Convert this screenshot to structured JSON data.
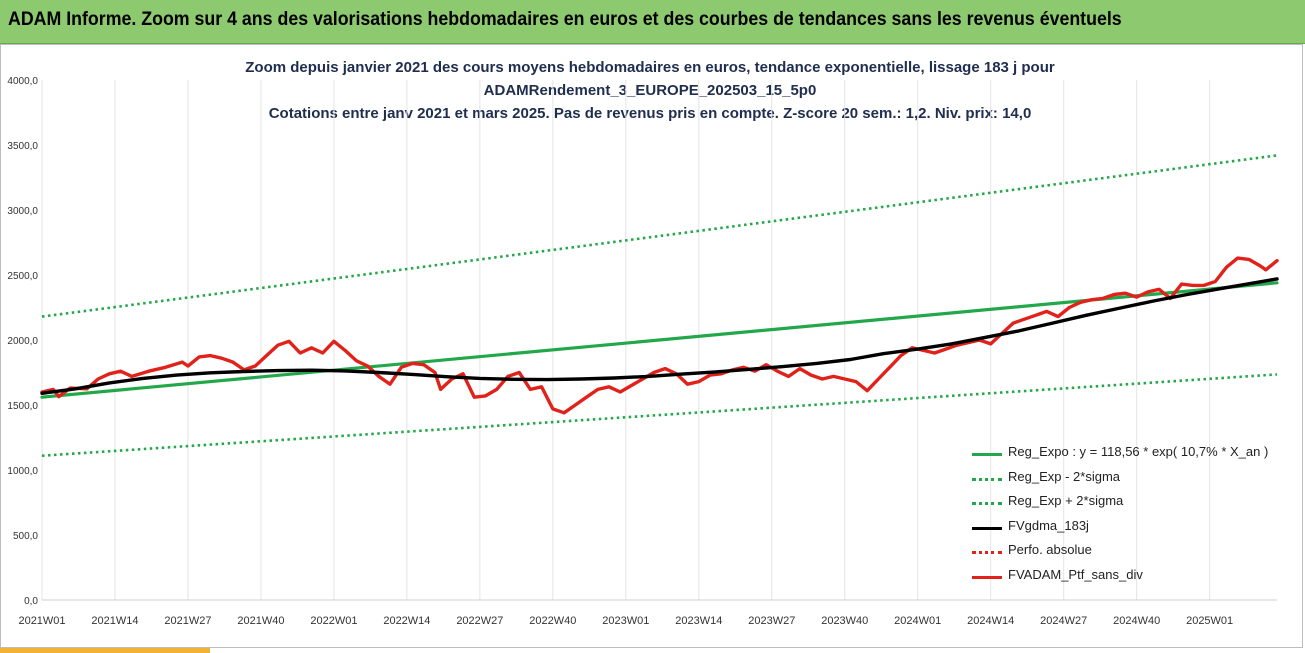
{
  "banner": {
    "title": "ADAM Informe. Zoom sur 4 ans des valorisations hebdomadaires en euros et des courbes de tendances sans les revenus éventuels"
  },
  "colors": {
    "banner_bg": "#8dc96e",
    "reg_expo": "#22a84a",
    "reg_band": "#22a84a",
    "fvgdma": "#000000",
    "perfo": "#e0221b",
    "fvadam": "#e0221b",
    "accent": "#f2b233"
  },
  "chart_data": {
    "type": "line",
    "title_lines": [
      "Zoom depuis janvier 2021 des cours moyens hebdomadaires  en euros, tendance exponentielle, lissage 183 j pour",
      "ADAMRendement_3_EUROPE_202503_15_5p0",
      "Cotations  entre janv 2021 et mars 2025. Pas de revenus pris en compte. Z-score 20 sem.: 1,2. Niv. prix: 14,0"
    ],
    "ylim": [
      0,
      4000
    ],
    "yticks": [
      "0,0",
      "500,0",
      "1000,0",
      "1500,0",
      "2000,0",
      "2500,0",
      "3000,0",
      "3500,0",
      "4000,0"
    ],
    "xticks": [
      {
        "label": "2021W01",
        "week": 0
      },
      {
        "label": "2021W14",
        "week": 13
      },
      {
        "label": "2021W27",
        "week": 26
      },
      {
        "label": "2021W40",
        "week": 39
      },
      {
        "label": "2022W01",
        "week": 52
      },
      {
        "label": "2022W14",
        "week": 65
      },
      {
        "label": "2022W27",
        "week": 78
      },
      {
        "label": "2022W40",
        "week": 91
      },
      {
        "label": "2023W01",
        "week": 104
      },
      {
        "label": "2023W14",
        "week": 117
      },
      {
        "label": "2023W27",
        "week": 130
      },
      {
        "label": "2023W40",
        "week": 143
      },
      {
        "label": "2024W01",
        "week": 156
      },
      {
        "label": "2024W14",
        "week": 169
      },
      {
        "label": "2024W27",
        "week": 182
      },
      {
        "label": "2024W40",
        "week": 195
      },
      {
        "label": "2025W01",
        "week": 208
      }
    ],
    "x_max_week": 220,
    "series": [
      {
        "name": "Reg_Expo : y = 118,56 * exp( 10,7% *  X_an )",
        "style": "solid-green",
        "points": [
          [
            0,
            1560
          ],
          [
            220,
            2440
          ]
        ]
      },
      {
        "name": "Reg_Exp - 2*sigma",
        "style": "dotted-green",
        "points": [
          [
            0,
            1110
          ],
          [
            220,
            1735
          ]
        ]
      },
      {
        "name": "Reg_Exp + 2*sigma",
        "style": "dotted-green",
        "points": [
          [
            0,
            2180
          ],
          [
            220,
            3420
          ]
        ]
      },
      {
        "name": "FVgdma_183j",
        "style": "solid-black",
        "points": [
          [
            0,
            1590
          ],
          [
            6,
            1625
          ],
          [
            12,
            1670
          ],
          [
            18,
            1705
          ],
          [
            24,
            1730
          ],
          [
            30,
            1748
          ],
          [
            36,
            1758
          ],
          [
            42,
            1765
          ],
          [
            48,
            1768
          ],
          [
            54,
            1762
          ],
          [
            60,
            1750
          ],
          [
            66,
            1735
          ],
          [
            72,
            1718
          ],
          [
            78,
            1705
          ],
          [
            84,
            1698
          ],
          [
            90,
            1695
          ],
          [
            96,
            1700
          ],
          [
            102,
            1708
          ],
          [
            108,
            1720
          ],
          [
            114,
            1738
          ],
          [
            120,
            1755
          ],
          [
            126,
            1775
          ],
          [
            132,
            1795
          ],
          [
            138,
            1820
          ],
          [
            144,
            1850
          ],
          [
            150,
            1895
          ],
          [
            156,
            1930
          ],
          [
            162,
            1970
          ],
          [
            168,
            2020
          ],
          [
            174,
            2070
          ],
          [
            180,
            2130
          ],
          [
            186,
            2190
          ],
          [
            192,
            2245
          ],
          [
            198,
            2300
          ],
          [
            204,
            2350
          ],
          [
            210,
            2395
          ],
          [
            216,
            2440
          ],
          [
            220,
            2470
          ]
        ]
      },
      {
        "name": "Perfo. absolue",
        "style": "dotted-red",
        "points": []
      },
      {
        "name": "FVADAM_Ptf_sans_div",
        "style": "solid-red",
        "points": [
          [
            0,
            1600
          ],
          [
            2,
            1620
          ],
          [
            3,
            1565
          ],
          [
            5,
            1630
          ],
          [
            8,
            1625
          ],
          [
            10,
            1700
          ],
          [
            12,
            1740
          ],
          [
            14,
            1760
          ],
          [
            16,
            1720
          ],
          [
            19,
            1760
          ],
          [
            22,
            1790
          ],
          [
            25,
            1830
          ],
          [
            26,
            1800
          ],
          [
            28,
            1870
          ],
          [
            30,
            1880
          ],
          [
            32,
            1860
          ],
          [
            34,
            1830
          ],
          [
            36,
            1770
          ],
          [
            38,
            1800
          ],
          [
            40,
            1880
          ],
          [
            42,
            1960
          ],
          [
            44,
            1990
          ],
          [
            46,
            1900
          ],
          [
            48,
            1940
          ],
          [
            50,
            1900
          ],
          [
            52,
            1990
          ],
          [
            54,
            1920
          ],
          [
            56,
            1840
          ],
          [
            58,
            1800
          ],
          [
            60,
            1720
          ],
          [
            62,
            1660
          ],
          [
            64,
            1790
          ],
          [
            66,
            1820
          ],
          [
            68,
            1810
          ],
          [
            70,
            1750
          ],
          [
            71,
            1620
          ],
          [
            73,
            1700
          ],
          [
            75,
            1740
          ],
          [
            77,
            1560
          ],
          [
            79,
            1570
          ],
          [
            81,
            1620
          ],
          [
            83,
            1720
          ],
          [
            85,
            1750
          ],
          [
            87,
            1620
          ],
          [
            89,
            1640
          ],
          [
            91,
            1470
          ],
          [
            93,
            1440
          ],
          [
            95,
            1500
          ],
          [
            97,
            1560
          ],
          [
            99,
            1620
          ],
          [
            101,
            1640
          ],
          [
            103,
            1600
          ],
          [
            105,
            1650
          ],
          [
            107,
            1700
          ],
          [
            109,
            1750
          ],
          [
            111,
            1780
          ],
          [
            113,
            1740
          ],
          [
            115,
            1660
          ],
          [
            117,
            1680
          ],
          [
            119,
            1730
          ],
          [
            121,
            1740
          ],
          [
            123,
            1770
          ],
          [
            125,
            1790
          ],
          [
            127,
            1760
          ],
          [
            129,
            1810
          ],
          [
            131,
            1760
          ],
          [
            133,
            1720
          ],
          [
            135,
            1780
          ],
          [
            137,
            1730
          ],
          [
            139,
            1700
          ],
          [
            141,
            1720
          ],
          [
            143,
            1700
          ],
          [
            145,
            1680
          ],
          [
            147,
            1610
          ],
          [
            149,
            1700
          ],
          [
            151,
            1790
          ],
          [
            153,
            1880
          ],
          [
            155,
            1940
          ],
          [
            157,
            1920
          ],
          [
            159,
            1900
          ],
          [
            161,
            1930
          ],
          [
            163,
            1960
          ],
          [
            165,
            1980
          ],
          [
            167,
            2000
          ],
          [
            169,
            1970
          ],
          [
            171,
            2050
          ],
          [
            173,
            2130
          ],
          [
            175,
            2160
          ],
          [
            177,
            2190
          ],
          [
            179,
            2220
          ],
          [
            181,
            2180
          ],
          [
            183,
            2250
          ],
          [
            185,
            2290
          ],
          [
            187,
            2310
          ],
          [
            189,
            2320
          ],
          [
            191,
            2350
          ],
          [
            193,
            2360
          ],
          [
            195,
            2330
          ],
          [
            197,
            2370
          ],
          [
            199,
            2390
          ],
          [
            201,
            2320
          ],
          [
            203,
            2430
          ],
          [
            205,
            2420
          ],
          [
            207,
            2420
          ],
          [
            209,
            2450
          ],
          [
            211,
            2560
          ],
          [
            213,
            2630
          ],
          [
            215,
            2620
          ],
          [
            217,
            2570
          ],
          [
            218,
            2540
          ],
          [
            220,
            2610
          ]
        ]
      }
    ],
    "legend_position": "bottom-right"
  }
}
